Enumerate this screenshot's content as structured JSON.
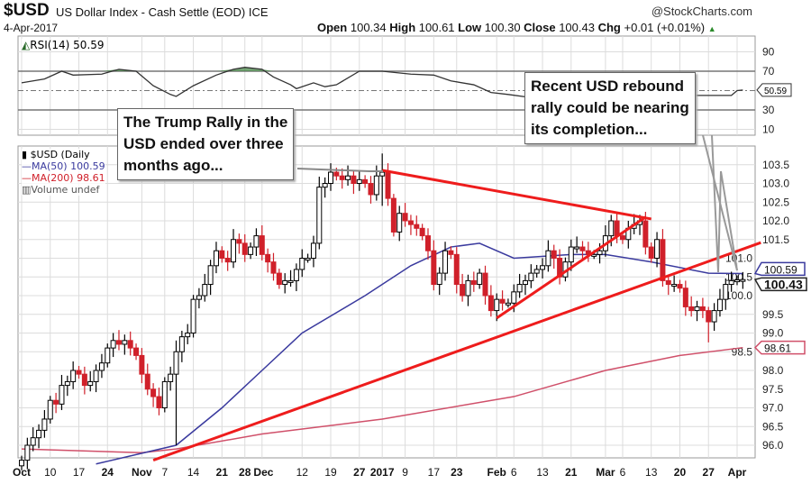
{
  "header": {
    "symbol": "$USD",
    "name": "US Dollar Index - Cash Settle (EOD) ICE",
    "date": "4-Apr-2017",
    "brand": "@StockCharts.com",
    "open_label": "Open",
    "open": "100.34",
    "high_label": "High",
    "high": "100.61",
    "low_label": "Low",
    "low": "100.30",
    "close_label": "Close",
    "close": "100.43",
    "chg_label": "Chg",
    "chg": "+0.01 (+0.01%)"
  },
  "colors": {
    "up": "#000000",
    "down": "#d0202a",
    "ma50": "#3a3a9e",
    "ma200": "#d0506a",
    "trendline": "#ee1c1c",
    "rsi_fill": "#4a8a4a",
    "grid": "#dcdcdc"
  },
  "annotations": [
    {
      "text": "The Trump Rally in the\nUSD ended over three\nmonths ago..."
    },
    {
      "text": "Recent USD rebound\nrally could be nearing\nits completion..."
    }
  ],
  "chart_data": [
    {
      "type": "line",
      "title": "RSI(14) 50.59",
      "y_ticks": [
        90,
        70,
        30,
        10
      ],
      "ylim": [
        0,
        100
      ],
      "reference_lines": [
        70,
        50,
        30
      ],
      "last_value": "50.59",
      "points": [
        [
          "2016-10-03",
          58
        ],
        [
          "2016-10-07",
          62
        ],
        [
          "2016-10-12",
          70
        ],
        [
          "2016-10-14",
          66
        ],
        [
          "2016-10-21",
          67
        ],
        [
          "2016-10-26",
          72
        ],
        [
          "2016-10-31",
          70
        ],
        [
          "2016-11-03",
          55
        ],
        [
          "2016-11-08",
          46
        ],
        [
          "2016-11-09",
          44
        ],
        [
          "2016-11-14",
          55
        ],
        [
          "2016-11-18",
          66
        ],
        [
          "2016-11-23",
          72
        ],
        [
          "2016-11-28",
          74
        ],
        [
          "2016-12-01",
          72
        ],
        [
          "2016-12-05",
          64
        ],
        [
          "2016-12-08",
          56
        ],
        [
          "2016-12-09",
          52
        ],
        [
          "2016-12-14",
          58
        ],
        [
          "2016-12-16",
          54
        ],
        [
          "2016-12-20",
          56
        ],
        [
          "2016-12-27",
          70
        ],
        [
          "2017-01-03",
          70
        ],
        [
          "2017-01-10",
          67
        ],
        [
          "2017-01-17",
          66
        ],
        [
          "2017-01-20",
          60
        ],
        [
          "2017-01-26",
          56
        ],
        [
          "2017-01-31",
          48
        ],
        [
          "2017-02-03",
          46
        ],
        [
          "2017-02-10",
          42
        ],
        [
          "2017-02-14",
          46
        ],
        [
          "2017-02-17",
          42
        ],
        [
          "2017-02-22",
          46
        ],
        [
          "2017-02-27",
          44
        ],
        [
          "2017-03-03",
          40
        ],
        [
          "2017-03-06",
          42
        ],
        [
          "2017-03-10",
          45
        ],
        [
          "2017-03-31",
          45
        ],
        [
          "2017-04-03",
          50
        ],
        [
          "2017-04-04",
          50.59
        ]
      ]
    },
    {
      "type": "candlestick",
      "title": "$USD (Daily)",
      "legend": [
        "$USD (Daily",
        "MA(50) 100.59",
        "MA(200) 98.61",
        "Volume undef"
      ],
      "y_ticks": [
        103.5,
        103.0,
        102.5,
        102.0,
        101.5,
        101.0,
        100.5,
        100.0,
        99.5,
        99.0,
        98.5,
        98.0,
        97.5,
        97.0,
        96.5,
        96.0
      ],
      "ylim": [
        95.7,
        104.0
      ],
      "last_labels": {
        "close": "100.43",
        "ma50": "100.59",
        "ma200": "98.61"
      },
      "x_ticks": [
        [
          "Oct",
          "2016-10-03"
        ],
        [
          "10",
          "2016-10-10"
        ],
        [
          "17",
          "2016-10-17"
        ],
        [
          "24",
          "2016-10-24"
        ],
        [
          "Nov",
          "2016-11-01"
        ],
        [
          "7",
          "2016-11-07"
        ],
        [
          "14",
          "2016-11-14"
        ],
        [
          "21",
          "2016-11-21"
        ],
        [
          "28",
          "2016-11-28"
        ],
        [
          "Dec",
          "2016-12-01"
        ],
        [
          "12",
          "2016-12-12"
        ],
        [
          "19",
          "2016-12-19"
        ],
        [
          "27",
          "2016-12-27"
        ],
        [
          "2017",
          "2017-01-03"
        ],
        [
          "9",
          "2017-01-09"
        ],
        [
          "17",
          "2017-01-17"
        ],
        [
          "23",
          "2017-01-23"
        ],
        [
          "Feb",
          "2017-02-01"
        ],
        [
          "6",
          "2017-02-06"
        ],
        [
          "13",
          "2017-02-13"
        ],
        [
          "21",
          "2017-02-21"
        ],
        [
          "Mar",
          "2017-03-01"
        ],
        [
          "6",
          "2017-03-06"
        ],
        [
          "13",
          "2017-03-13"
        ],
        [
          "20",
          "2017-03-20"
        ],
        [
          "27",
          "2017-03-27"
        ],
        [
          "Apr",
          "2017-04-03"
        ]
      ],
      "weeks": [
        {
          "start": "2016-10-03",
          "days": [
            "03",
            "04",
            "05",
            "06",
            "07"
          ],
          "closes": [
            95.6,
            96.0,
            96.2,
            96.4,
            96.7
          ]
        },
        {
          "start": "2016-10-10",
          "days": [
            "10",
            "11",
            "12",
            "13",
            "14"
          ],
          "closes": [
            97.2,
            97.1,
            97.6,
            97.7,
            98.0
          ]
        },
        {
          "start": "2016-10-17",
          "days": [
            "17",
            "18",
            "19",
            "20",
            "21"
          ],
          "closes": [
            97.9,
            97.6,
            97.7,
            98.0,
            98.2
          ]
        },
        {
          "start": "2016-10-24",
          "days": [
            "24",
            "25",
            "26",
            "27",
            "28"
          ],
          "closes": [
            98.6,
            98.8,
            98.7,
            98.8,
            98.6
          ]
        },
        {
          "start": "2016-10-31",
          "days": [
            "31",
            "01",
            "02",
            "03",
            "04"
          ],
          "closes": [
            98.4,
            97.9,
            97.5,
            97.3,
            97.0
          ]
        },
        {
          "start": "2016-11-07",
          "days": [
            "07",
            "08",
            "09",
            "10",
            "11"
          ],
          "closes": [
            97.7,
            97.9,
            98.5,
            98.9,
            99.0
          ]
        },
        {
          "start": "2016-11-14",
          "days": [
            "14",
            "15",
            "16",
            "17",
            "18"
          ],
          "closes": [
            99.9,
            100.0,
            100.3,
            100.8,
            101.2
          ]
        },
        {
          "start": "2016-11-21",
          "days": [
            "21",
            "22",
            "23",
            "25"
          ],
          "closes": [
            101.0,
            100.9,
            101.5,
            101.4
          ]
        },
        {
          "start": "2016-11-28",
          "days": [
            "28",
            "29",
            "30",
            "01",
            "02"
          ],
          "closes": [
            101.1,
            101.3,
            101.6,
            101.1,
            100.9
          ]
        },
        {
          "start": "2016-12-05",
          "days": [
            "05",
            "06",
            "07",
            "08",
            "09"
          ],
          "closes": [
            100.6,
            100.3,
            100.4,
            100.4,
            100.7
          ]
        },
        {
          "start": "2016-12-12",
          "days": [
            "12",
            "13",
            "14",
            "15",
            "16"
          ],
          "closes": [
            101.0,
            101.0,
            101.4,
            102.9,
            103.0
          ]
        },
        {
          "start": "2016-12-19",
          "days": [
            "19",
            "20",
            "21",
            "22",
            "23"
          ],
          "closes": [
            103.3,
            103.2,
            103.1,
            103.2,
            103.0
          ]
        },
        {
          "start": "2016-12-27",
          "days": [
            "27",
            "28",
            "29",
            "30"
          ],
          "closes": [
            103.1,
            103.0,
            102.7,
            103.2
          ]
        },
        {
          "start": "2017-01-03",
          "days": [
            "03",
            "04",
            "05",
            "06"
          ],
          "closes": [
            103.3,
            102.6,
            101.7,
            102.2
          ]
        },
        {
          "start": "2017-01-09",
          "days": [
            "09",
            "10",
            "11",
            "12",
            "13"
          ],
          "closes": [
            102.0,
            101.9,
            101.8,
            101.6,
            101.2
          ]
        },
        {
          "start": "2017-01-17",
          "days": [
            "17",
            "18",
            "19",
            "20"
          ],
          "closes": [
            100.3,
            100.6,
            101.2,
            101.1
          ]
        },
        {
          "start": "2017-01-23",
          "days": [
            "23",
            "24",
            "25",
            "26",
            "27"
          ],
          "closes": [
            100.3,
            100.0,
            100.4,
            100.3,
            100.6
          ]
        },
        {
          "start": "2017-01-30",
          "days": [
            "30",
            "31",
            "01",
            "02",
            "03"
          ],
          "closes": [
            100.0,
            99.6,
            99.9,
            99.8,
            99.8
          ]
        },
        {
          "start": "2017-02-06",
          "days": [
            "06",
            "07",
            "08",
            "09",
            "10"
          ],
          "closes": [
            100.1,
            100.3,
            100.4,
            100.6,
            100.7
          ]
        },
        {
          "start": "2017-02-13",
          "days": [
            "13",
            "14",
            "15",
            "16",
            "17"
          ],
          "closes": [
            100.8,
            101.2,
            101.0,
            100.5,
            100.9
          ]
        },
        {
          "start": "2017-02-21",
          "days": [
            "21",
            "22",
            "23",
            "24"
          ],
          "closes": [
            101.3,
            101.3,
            101.2,
            101.1
          ]
        },
        {
          "start": "2017-02-27",
          "days": [
            "27",
            "28",
            "01",
            "02",
            "03"
          ],
          "closes": [
            101.1,
            101.2,
            101.6,
            102.0,
            101.6
          ]
        },
        {
          "start": "2017-03-06",
          "days": [
            "06",
            "07",
            "08",
            "09",
            "10"
          ],
          "closes": [
            101.5,
            101.8,
            101.9,
            102.0,
            101.3
          ]
        },
        {
          "start": "2017-03-13",
          "days": [
            "13",
            "14",
            "15",
            "16",
            "17"
          ],
          "closes": [
            101.0,
            101.5,
            100.4,
            100.3,
            100.3
          ]
        },
        {
          "start": "2017-03-20",
          "days": [
            "20",
            "21",
            "22",
            "23",
            "24"
          ],
          "closes": [
            100.2,
            99.7,
            99.6,
            99.7,
            99.6
          ]
        },
        {
          "start": "2017-03-27",
          "days": [
            "27",
            "28",
            "29",
            "30",
            "31"
          ],
          "closes": [
            99.3,
            99.6,
            99.9,
            100.3,
            100.4
          ]
        },
        {
          "start": "2017-04-03",
          "days": [
            "03",
            "04"
          ],
          "closes": [
            100.42,
            100.43
          ]
        }
      ],
      "notable_wicks": [
        {
          "date": "2016-11-09",
          "low": 96.0,
          "high": 98.8
        },
        {
          "date": "2017-01-03",
          "low": 102.4,
          "high": 103.8
        },
        {
          "date": "2017-03-27",
          "low": 98.75,
          "high": 99.7
        }
      ],
      "ma50": [
        [
          "2016-10-20",
          95.5
        ],
        [
          "2016-11-09",
          96.0
        ],
        [
          "2016-11-21",
          97.0
        ],
        [
          "2016-12-01",
          98.0
        ],
        [
          "2016-12-12",
          99.0
        ],
        [
          "2016-12-28",
          100.0
        ],
        [
          "2017-01-10",
          100.8
        ],
        [
          "2017-01-20",
          101.3
        ],
        [
          "2017-01-27",
          101.4
        ],
        [
          "2017-02-06",
          101.0
        ],
        [
          "2017-02-21",
          101.1
        ],
        [
          "2017-03-01",
          101.1
        ],
        [
          "2017-03-13",
          100.9
        ],
        [
          "2017-03-27",
          100.6
        ],
        [
          "2017-04-04",
          100.59
        ]
      ],
      "ma200": [
        [
          "2016-10-03",
          95.9
        ],
        [
          "2016-11-01",
          95.8
        ],
        [
          "2016-11-09",
          95.9
        ],
        [
          "2016-12-01",
          96.3
        ],
        [
          "2017-01-03",
          96.7
        ],
        [
          "2017-02-06",
          97.3
        ],
        [
          "2017-03-01",
          98.0
        ],
        [
          "2017-03-20",
          98.4
        ],
        [
          "2017-04-04",
          98.61
        ]
      ],
      "trendlines": [
        [
          [
            "2017-01-03",
            103.35
          ],
          [
            "2017-03-13",
            102.05
          ]
        ],
        [
          [
            "2016-11-03",
            95.6
          ],
          [
            "2017-04-04",
            101.2
          ]
        ],
        [
          [
            "2017-02-01",
            99.4
          ],
          [
            "2017-03-10",
            102.1
          ]
        ]
      ]
    }
  ]
}
